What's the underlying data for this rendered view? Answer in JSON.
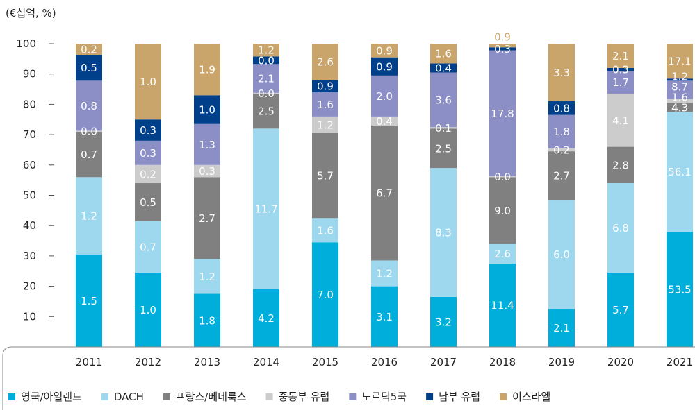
{
  "chart_data": {
    "type": "bar",
    "stacked": true,
    "unit_label": "(€십억, %)",
    "ylim": [
      0,
      100
    ],
    "yticks": [
      10,
      20,
      30,
      40,
      50,
      60,
      70,
      80,
      90,
      100
    ],
    "ytick_labels": [
      "10",
      "20",
      "30",
      "40",
      "50",
      "60",
      "70",
      "80",
      "90",
      "100"
    ],
    "categories": [
      "2011",
      "2012",
      "2013",
      "2014",
      "2015",
      "2016",
      "2017",
      "2018",
      "2019",
      "2020",
      "2021"
    ],
    "legend_position": "bottom",
    "series": [
      {
        "name": "영국/아일랜드",
        "color": "#00aedb",
        "shares": [
          30.5,
          24.5,
          17.5,
          19,
          34.5,
          20,
          16.5,
          27.5,
          12.5,
          24.5,
          38
        ],
        "labels": [
          "1.5",
          "1.0",
          "1.8",
          "4.2",
          "7.0",
          "3.1",
          "3.2",
          "11.4",
          "2.1",
          "5.7",
          "53.5"
        ]
      },
      {
        "name": "DACH",
        "color": "#9dd8ef",
        "shares": [
          25.5,
          17,
          11.5,
          53,
          8,
          8.5,
          42.5,
          6.5,
          36,
          29.5,
          39.5
        ],
        "labels": [
          "1.2",
          "0.7",
          "1.2",
          "11.7",
          "1.6",
          "1.2",
          "8.3",
          "2.6",
          "6.0",
          "6.8",
          "56.1"
        ]
      },
      {
        "name": "프랑스/베네룩스",
        "color": "#808080",
        "shares": [
          15,
          12.5,
          27,
          11.5,
          28,
          44.5,
          13,
          22,
          16,
          12,
          3
        ],
        "labels": [
          "0.7",
          "0.5",
          "2.7",
          "2.5",
          "5.7",
          "6.7",
          "2.5",
          "9.0",
          "2.7",
          "2.8",
          "4.3"
        ]
      },
      {
        "name": "중동부 유럽",
        "color": "#cccccc",
        "shares": [
          0.3,
          6,
          4,
          0.3,
          5.5,
          3,
          0.5,
          0.3,
          1,
          17.5,
          1.3
        ],
        "labels": [
          "0.0",
          "0.2",
          "0.3",
          "0.0",
          "1.2",
          "0.4",
          "0.1",
          "0.0",
          "0.2",
          "4.1",
          "1.6"
        ]
      },
      {
        "name": "노르딕5국",
        "color": "#8b8fc6",
        "shares": [
          16.5,
          8,
          13.5,
          9.5,
          8,
          13.5,
          18,
          41.5,
          11,
          7.5,
          6
        ],
        "labels": [
          "0.8",
          "0.3",
          "1.3",
          "2.1",
          "1.6",
          "2.0",
          "3.6",
          "17.8",
          "1.8",
          "1.7",
          "8.7"
        ]
      },
      {
        "name": "남부 유럽",
        "color": "#003f8a",
        "shares": [
          8.5,
          7,
          9.5,
          2.5,
          4,
          6,
          3,
          1,
          4.5,
          1,
          0.7
        ],
        "labels": [
          "0.5",
          "0.3",
          "1.0",
          "0.0",
          "0.9",
          "0.9",
          "0.4",
          "0.3",
          "0.8",
          "0.3",
          "1.2"
        ]
      },
      {
        "name": "이스라엘",
        "color": "#c9a46b",
        "shares": [
          3.7,
          25,
          17,
          4.2,
          12,
          4.5,
          6.5,
          1.2,
          19,
          8,
          11.5
        ],
        "labels": [
          "0.2",
          "1.0",
          "1.9",
          "1.2",
          "2.6",
          "0.9",
          "1.6",
          "0.9",
          "3.3",
          "2.1",
          "17.1"
        ]
      }
    ]
  }
}
